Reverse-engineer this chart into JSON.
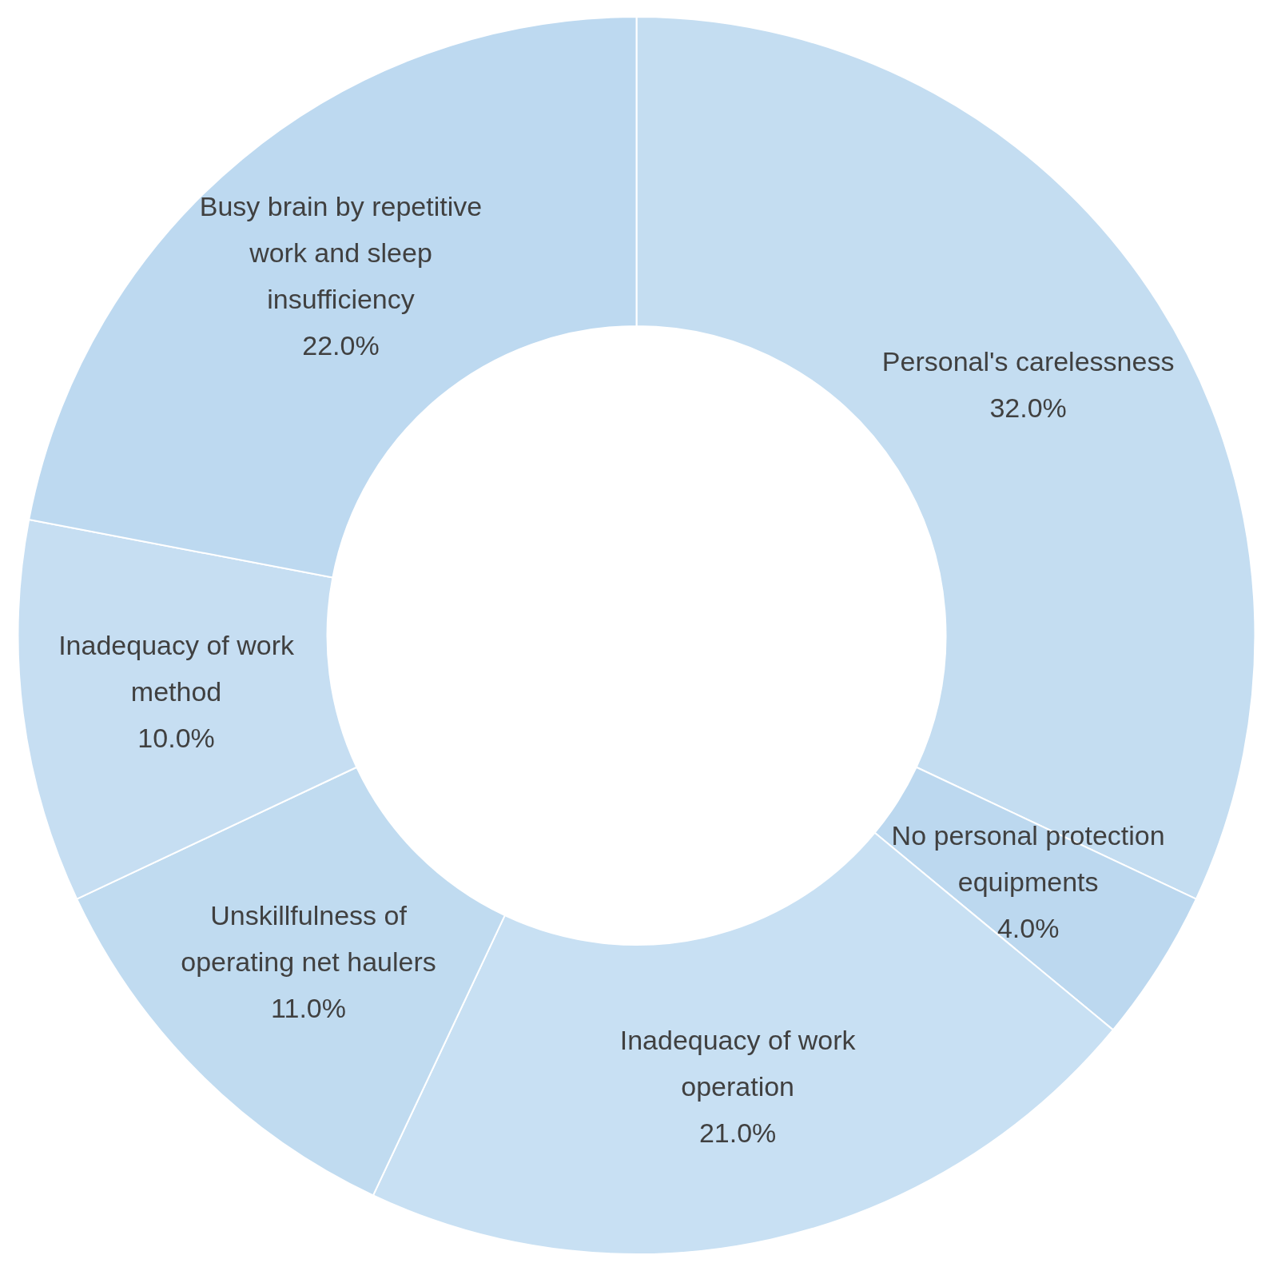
{
  "chart_data": {
    "type": "donut",
    "categories": [
      "Personal's carelessness",
      "No personal protection equipments",
      "Inadequacy of work operation",
      "Unskillfulness of operating net haulers",
      "Inadequacy of work method",
      "Busy brain by repetitive work and sleep insufficiency"
    ],
    "values": [
      32,
      4,
      21,
      11,
      10,
      22
    ],
    "value_labels": [
      "32.0%",
      "4.0%",
      "21.0%",
      "11.0%",
      "10.0%",
      "22.0%"
    ],
    "colors": [
      "#c4ddf1",
      "#bcd8ef",
      "#c8e0f3",
      "#c0dbf0",
      "#c6def2",
      "#bdd9f0"
    ],
    "legend": false
  }
}
